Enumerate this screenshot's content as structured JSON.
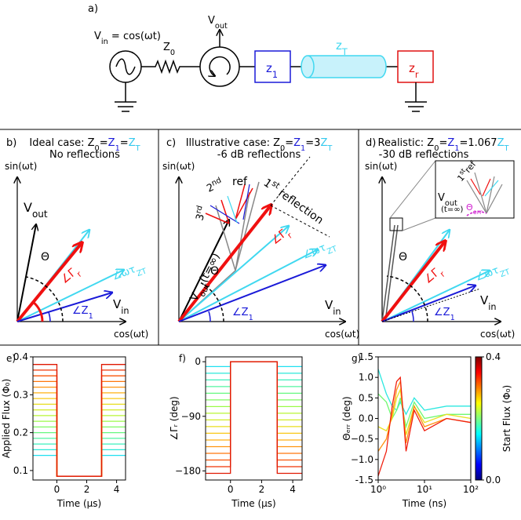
{
  "panel_a": {
    "label": "a)",
    "vin": [
      "V",
      "in",
      " = cos(ωt)"
    ],
    "z0": [
      "Z",
      "0"
    ],
    "vout": [
      "V",
      "out"
    ],
    "z1": [
      "z",
      "1"
    ],
    "zt": [
      "z",
      "T"
    ],
    "zr": [
      "z",
      "r"
    ]
  },
  "panel_b": {
    "label": "b)",
    "title": [
      {
        "text": "Ideal case: Z",
        "color": "#000000"
      },
      {
        "text": "0",
        "color": "#000000",
        "sub": true
      },
      {
        "text": "=",
        "color": "#000000"
      },
      {
        "text": "Z",
        "color": "#1a1ad8"
      },
      {
        "text": "1",
        "color": "#1a1ad8",
        "sub": true
      },
      {
        "text": "=",
        "color": "#000000"
      },
      {
        "text": "Z",
        "color": "#33c8ee"
      },
      {
        "text": "T",
        "color": "#33c8ee",
        "sub": true
      }
    ],
    "subtitle": "No reflections",
    "y_axis": "sin(ωt)",
    "x_axis": "cos(ωt)",
    "vout": [
      "V",
      "out"
    ],
    "theta": "Θ",
    "gamma": [
      "∠Γ",
      "r"
    ],
    "tau": [
      "∠ωτ",
      "ZT"
    ],
    "vin": [
      "V",
      "in"
    ],
    "z1": [
      "∠Z",
      "1"
    ]
  },
  "panel_c": {
    "label": "c)",
    "title": [
      {
        "text": "Illustrative case: Z",
        "color": "#000000"
      },
      {
        "text": "0",
        "color": "#000000",
        "sub": true
      },
      {
        "text": "=",
        "color": "#000000"
      },
      {
        "text": "Z",
        "color": "#1a1ad8"
      },
      {
        "text": "1",
        "color": "#1a1ad8",
        "sub": true
      },
      {
        "text": "=3",
        "color": "#000000"
      },
      {
        "text": "Z",
        "color": "#33c8ee"
      },
      {
        "text": "T",
        "color": "#33c8ee",
        "sub": true
      }
    ],
    "subtitle": "-6 dB reflections",
    "y_axis": "sin(ωt)",
    "x_axis": "cos(ωt)",
    "vout": [
      "V",
      "out",
      "(t=∞)"
    ],
    "third": [
      "3",
      "rd"
    ],
    "second": [
      "2",
      "nd"
    ],
    "ref": "ref",
    "first": [
      "1",
      "st",
      " reflection"
    ],
    "theta": "Θ",
    "gamma": [
      "∠Γ",
      "r"
    ],
    "tau": [
      "∠ωτ",
      "ZT"
    ],
    "vin": [
      "V",
      "in"
    ],
    "z1": [
      "∠Z",
      "1"
    ]
  },
  "panel_d": {
    "label": "d)",
    "title": [
      {
        "text": "Realistic: Z",
        "color": "#000000"
      },
      {
        "text": "0",
        "color": "#000000",
        "sub": true
      },
      {
        "text": "=",
        "color": "#000000"
      },
      {
        "text": "Z",
        "color": "#1a1ad8"
      },
      {
        "text": "1",
        "color": "#1a1ad8",
        "sub": true
      },
      {
        "text": "=1.067",
        "color": "#000000"
      },
      {
        "text": "Z",
        "color": "#33c8ee"
      },
      {
        "text": "T",
        "color": "#33c8ee",
        "sub": true
      }
    ],
    "subtitle": "-30 dB reflections",
    "y_axis": "sin(ωt)",
    "x_axis": "cos(ωt)",
    "first": [
      "1",
      "st",
      "ref"
    ],
    "vout": [
      "V",
      "out"
    ],
    "vout_t": "(t=∞)",
    "theta_err": [
      "Θ",
      "err"
    ],
    "theta": "Θ",
    "gamma": [
      "∠Γ",
      "r"
    ],
    "tau": [
      "∠ωτ",
      "ZT"
    ],
    "vin": [
      "V",
      "in"
    ],
    "z1": [
      "∠Z",
      "1"
    ]
  },
  "chart_data": [
    {
      "type": "line",
      "label": "e)",
      "xlabel": "Time (μs)",
      "ylabel": "Applied Flux (Φ₀)",
      "x": [
        -1.6,
        0,
        0,
        3,
        3,
        4.6
      ],
      "xlim": [
        -1.6,
        4.6
      ],
      "xticks": [
        0,
        2,
        4
      ],
      "ylim": [
        0.075,
        0.4
      ],
      "yticks": [
        0.1,
        0.2,
        0.3,
        0.4
      ],
      "series": [
        {
          "color": "#1fe0f0",
          "values": [
            0.14,
            0.14,
            0.085,
            0.085,
            0.14,
            0.14
          ]
        },
        {
          "color": "#2ce8d8",
          "values": [
            0.155,
            0.155,
            0.085,
            0.085,
            0.155,
            0.155
          ]
        },
        {
          "color": "#3cf0bd",
          "values": [
            0.17,
            0.17,
            0.085,
            0.085,
            0.17,
            0.17
          ]
        },
        {
          "color": "#50f5a0",
          "values": [
            0.185,
            0.185,
            0.085,
            0.085,
            0.185,
            0.185
          ]
        },
        {
          "color": "#66f880",
          "values": [
            0.2,
            0.2,
            0.085,
            0.085,
            0.2,
            0.2
          ]
        },
        {
          "color": "#80fa62",
          "values": [
            0.215,
            0.215,
            0.085,
            0.085,
            0.215,
            0.215
          ]
        },
        {
          "color": "#9cfa48",
          "values": [
            0.23,
            0.23,
            0.085,
            0.085,
            0.23,
            0.23
          ]
        },
        {
          "color": "#b8f535",
          "values": [
            0.245,
            0.245,
            0.085,
            0.085,
            0.245,
            0.245
          ]
        },
        {
          "color": "#d2ec28",
          "values": [
            0.26,
            0.26,
            0.085,
            0.085,
            0.26,
            0.26
          ]
        },
        {
          "color": "#e8dd1e",
          "values": [
            0.275,
            0.275,
            0.085,
            0.085,
            0.275,
            0.275
          ]
        },
        {
          "color": "#f8c818",
          "values": [
            0.29,
            0.29,
            0.085,
            0.085,
            0.29,
            0.29
          ]
        },
        {
          "color": "#ffb014",
          "values": [
            0.305,
            0.305,
            0.085,
            0.085,
            0.305,
            0.305
          ]
        },
        {
          "color": "#ff9410",
          "values": [
            0.32,
            0.32,
            0.085,
            0.085,
            0.32,
            0.32
          ]
        },
        {
          "color": "#ff760c",
          "values": [
            0.335,
            0.335,
            0.085,
            0.085,
            0.335,
            0.335
          ]
        },
        {
          "color": "#fa5508",
          "values": [
            0.35,
            0.35,
            0.085,
            0.085,
            0.35,
            0.35
          ]
        },
        {
          "color": "#f03505",
          "values": [
            0.365,
            0.365,
            0.085,
            0.085,
            0.365,
            0.365
          ]
        },
        {
          "color": "#e01802",
          "values": [
            0.38,
            0.38,
            0.085,
            0.085,
            0.38,
            0.38
          ]
        }
      ]
    },
    {
      "type": "line",
      "label": "f)",
      "xlabel": "Time (μs)",
      "ylabel": "∠Γᵣ (deg)",
      "x": [
        -1.6,
        0,
        0,
        3,
        3,
        4.6
      ],
      "xlim": [
        -1.6,
        4.6
      ],
      "xticks": [
        0,
        2,
        4
      ],
      "ylim": [
        -195,
        8
      ],
      "yticks": [
        {
          "value": -180,
          "label": "−180"
        },
        {
          "value": -90,
          "label": "−90"
        },
        0
      ],
      "series": [
        {
          "color": "#1fe0f0",
          "values": [
            -8,
            -8,
            0,
            0,
            -8,
            -8
          ]
        },
        {
          "color": "#2ce8d8",
          "values": [
            -19,
            -19,
            0,
            0,
            -19,
            -19
          ]
        },
        {
          "color": "#3cf0bd",
          "values": [
            -30,
            -30,
            0,
            0,
            -30,
            -30
          ]
        },
        {
          "color": "#50f5a0",
          "values": [
            -41,
            -41,
            0,
            0,
            -41,
            -41
          ]
        },
        {
          "color": "#66f880",
          "values": [
            -52,
            -52,
            0,
            0,
            -52,
            -52
          ]
        },
        {
          "color": "#80fa62",
          "values": [
            -63,
            -63,
            0,
            0,
            -63,
            -63
          ]
        },
        {
          "color": "#9cfa48",
          "values": [
            -74,
            -74,
            0,
            0,
            -74,
            -74
          ]
        },
        {
          "color": "#b8f535",
          "values": [
            -85,
            -85,
            0,
            0,
            -85,
            -85
          ]
        },
        {
          "color": "#d2ec28",
          "values": [
            -96,
            -96,
            0,
            0,
            -96,
            -96
          ]
        },
        {
          "color": "#e8dd1e",
          "values": [
            -107,
            -107,
            0,
            0,
            -107,
            -107
          ]
        },
        {
          "color": "#f8c818",
          "values": [
            -118,
            -118,
            0,
            0,
            -118,
            -118
          ]
        },
        {
          "color": "#ffb014",
          "values": [
            -129,
            -129,
            0,
            0,
            -129,
            -129
          ]
        },
        {
          "color": "#ff9410",
          "values": [
            -140,
            -140,
            0,
            0,
            -140,
            -140
          ]
        },
        {
          "color": "#ff760c",
          "values": [
            -151,
            -151,
            0,
            0,
            -151,
            -151
          ]
        },
        {
          "color": "#fa5508",
          "values": [
            -162,
            -162,
            0,
            0,
            -162,
            -162
          ]
        },
        {
          "color": "#f03505",
          "values": [
            -173,
            -173,
            0,
            0,
            -173,
            -173
          ]
        },
        {
          "color": "#e01802",
          "values": [
            -184,
            -184,
            0,
            0,
            -184,
            -184
          ]
        }
      ]
    },
    {
      "type": "line",
      "label": "g)",
      "xlabel": "Time (ns)",
      "ylabel": "Θₑᵣᵣ (deg)",
      "xlog": true,
      "x": [
        1,
        1.5,
        2,
        2.5,
        3,
        4,
        6,
        10,
        30,
        100
      ],
      "xlim": [
        1,
        100
      ],
      "xticks": [
        {
          "value": 1,
          "label": "10⁰"
        },
        {
          "value": 10,
          "label": "10¹"
        },
        {
          "value": 100,
          "label": "10²"
        }
      ],
      "ylim": [
        -1.5,
        1.5
      ],
      "yticks": [
        -1.5,
        {
          "value": -1,
          "label": "−1.0"
        },
        {
          "value": -0.5,
          "label": "−0.5"
        },
        {
          "value": 0,
          "label": "0.0"
        },
        0.5,
        {
          "value": 1,
          "label": "1.0"
        },
        1.5
      ],
      "series": [
        {
          "color": "#2ce8e0",
          "values": [
            1.2,
            0.6,
            0.3,
            0.2,
            0.4,
            0.1,
            0.5,
            0.2,
            0.3,
            0.3
          ]
        },
        {
          "color": "#70f870",
          "values": [
            0.6,
            0.4,
            0.0,
            0.2,
            0.5,
            -0.2,
            0.4,
            0.0,
            0.1,
            0.1
          ]
        },
        {
          "color": "#e8e020",
          "values": [
            -0.2,
            -0.3,
            0.0,
            0.5,
            0.7,
            -0.4,
            0.3,
            -0.1,
            0.1,
            0.0
          ]
        },
        {
          "color": "#ff9010",
          "values": [
            -0.8,
            -0.5,
            0.1,
            0.7,
            0.9,
            -0.6,
            0.3,
            -0.2,
            0.0,
            -0.1
          ]
        },
        {
          "color": "#f02010",
          "values": [
            -1.4,
            -0.8,
            0.3,
            0.9,
            1.0,
            -0.8,
            0.2,
            -0.3,
            0.0,
            -0.1
          ]
        }
      ],
      "colorbar": {
        "label": "Start Flux (Φ₀)",
        "lim": [
          0,
          0.4
        ],
        "ticks": [
          {
            "value": 0,
            "label": "0.0"
          },
          0.4
        ],
        "colors": [
          "#00007f",
          "#0000ff",
          "#007fff",
          "#00ffff",
          "#7fff7f",
          "#ffff00",
          "#ff7f00",
          "#ff0000",
          "#7f0000"
        ]
      }
    }
  ]
}
